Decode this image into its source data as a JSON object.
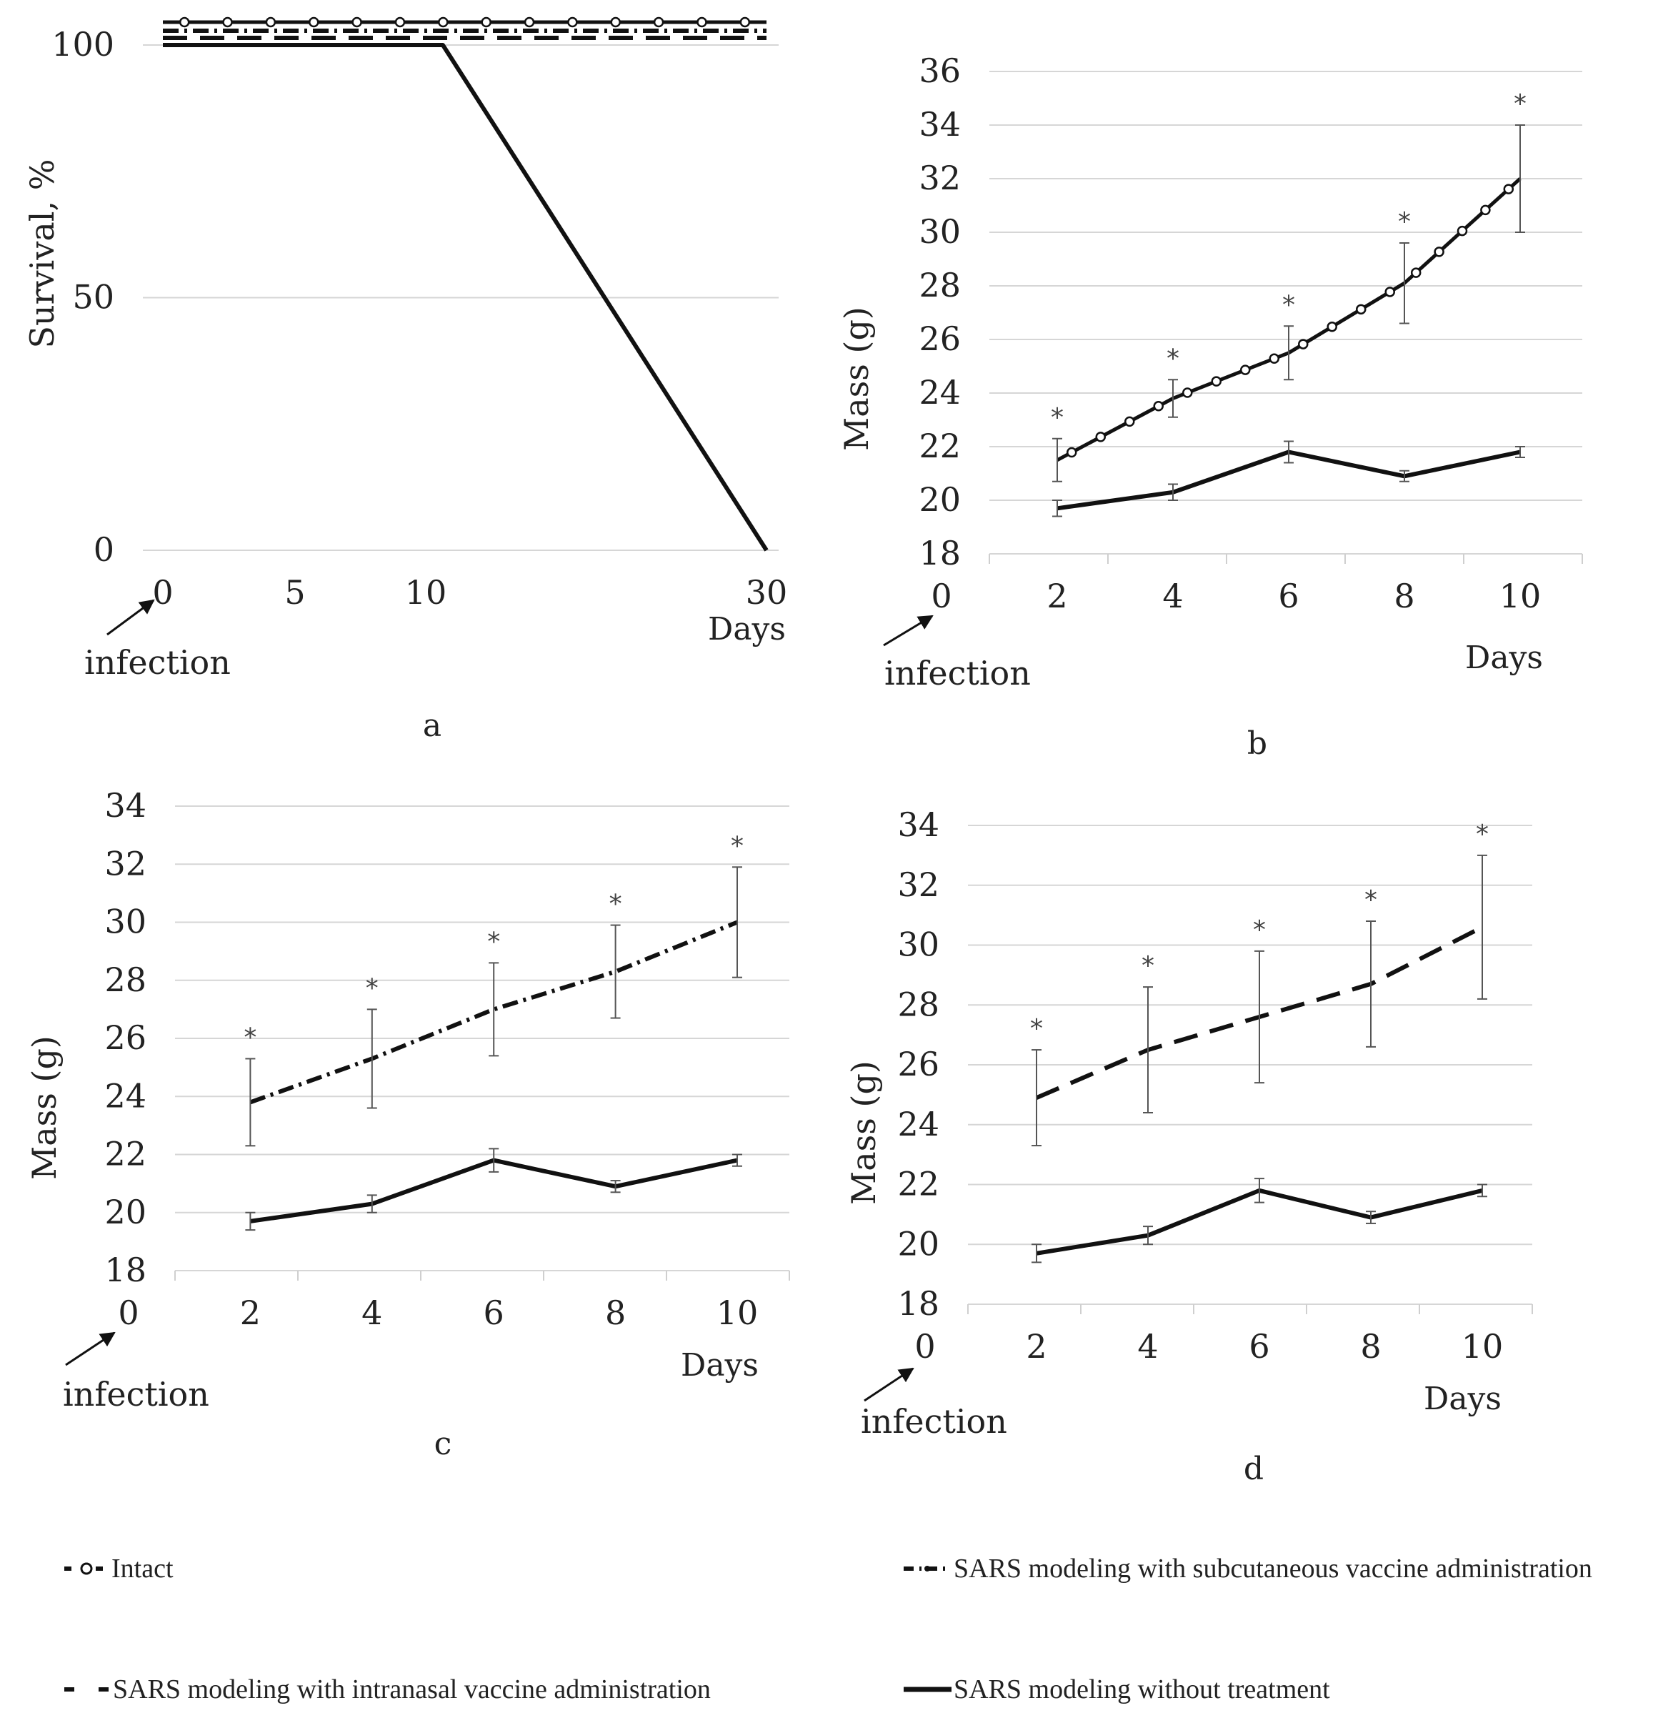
{
  "legend": [
    {
      "id": "intact",
      "label": "Intact"
    },
    {
      "id": "subcutaneous",
      "label": "SARS modeling with subcutaneous vaccine administration"
    },
    {
      "id": "intranasal",
      "label": "SARS modeling with intranasal vaccine administration"
    },
    {
      "id": "untreated",
      "label": "SARS modeling without treatment"
    }
  ],
  "chart_data": [
    {
      "panel": "a",
      "type": "line",
      "ylabel": "Survival, %",
      "xlabel": "Days",
      "annotation": "infection",
      "x_ticks": [
        "0",
        "5",
        "10",
        "30"
      ],
      "y_ticks": [
        "0",
        "50",
        "100"
      ],
      "ylim": [
        0,
        100
      ],
      "series": [
        {
          "name": "Intact",
          "style": "intact",
          "x": [
            0,
            30
          ],
          "y": [
            100,
            100
          ]
        },
        {
          "name": "SARS modeling with subcutaneous vaccine administration",
          "style": "subcutaneous",
          "x": [
            0,
            30
          ],
          "y": [
            100,
            100
          ]
        },
        {
          "name": "SARS modeling with intranasal vaccine administration",
          "style": "intranasal",
          "x": [
            0,
            30
          ],
          "y": [
            100,
            100
          ]
        },
        {
          "name": "SARS modeling without treatment",
          "style": "untreated",
          "x": [
            0,
            11,
            30
          ],
          "y": [
            100,
            100,
            0
          ]
        }
      ]
    },
    {
      "panel": "b",
      "type": "line",
      "ylabel": "Mass (g)",
      "xlabel": "Days",
      "annotation": "infection",
      "x_ticks": [
        "0",
        "2",
        "4",
        "6",
        "8",
        "10"
      ],
      "y_ticks": [
        "18",
        "20",
        "22",
        "24",
        "26",
        "28",
        "30",
        "32",
        "34",
        "36"
      ],
      "ylim": [
        18,
        36
      ],
      "series": [
        {
          "name": "Intact",
          "style": "intact",
          "x": [
            2,
            4,
            6,
            8,
            10
          ],
          "y": [
            21.5,
            23.8,
            25.5,
            28.1,
            32.0
          ],
          "err": [
            0.8,
            0.7,
            1.0,
            1.5,
            2.0
          ],
          "sig": true
        },
        {
          "name": "SARS modeling without treatment",
          "style": "untreated",
          "x": [
            2,
            4,
            6,
            8,
            10
          ],
          "y": [
            19.7,
            20.3,
            21.8,
            20.9,
            21.8
          ],
          "err": [
            0.3,
            0.3,
            0.4,
            0.2,
            0.2
          ],
          "sig": false
        }
      ]
    },
    {
      "panel": "c",
      "type": "line",
      "ylabel": "Mass (g)",
      "xlabel": "Days",
      "annotation": "infection",
      "x_ticks": [
        "0",
        "2",
        "4",
        "6",
        "8",
        "10"
      ],
      "y_ticks": [
        "18",
        "20",
        "22",
        "24",
        "26",
        "28",
        "30",
        "32",
        "34"
      ],
      "ylim": [
        18,
        34
      ],
      "series": [
        {
          "name": "SARS modeling with subcutaneous vaccine administration",
          "style": "subcutaneous",
          "x": [
            2,
            4,
            6,
            8,
            10
          ],
          "y": [
            23.8,
            25.3,
            27.0,
            28.3,
            30.0
          ],
          "err": [
            1.5,
            1.7,
            1.6,
            1.6,
            1.9
          ],
          "sig": true
        },
        {
          "name": "SARS modeling without treatment",
          "style": "untreated",
          "x": [
            2,
            4,
            6,
            8,
            10
          ],
          "y": [
            19.7,
            20.3,
            21.8,
            20.9,
            21.8
          ],
          "err": [
            0.3,
            0.3,
            0.4,
            0.2,
            0.2
          ],
          "sig": false
        }
      ]
    },
    {
      "panel": "d",
      "type": "line",
      "ylabel": "Mass (g)",
      "xlabel": "Days",
      "annotation": "infection",
      "x_ticks": [
        "0",
        "2",
        "4",
        "6",
        "8",
        "10"
      ],
      "y_ticks": [
        "18",
        "20",
        "22",
        "24",
        "26",
        "28",
        "30",
        "32",
        "34"
      ],
      "ylim": [
        18,
        34
      ],
      "series": [
        {
          "name": "SARS modeling with intranasal vaccine administration",
          "style": "intranasal",
          "x": [
            2,
            4,
            6,
            8,
            10
          ],
          "y": [
            24.9,
            26.5,
            27.6,
            28.7,
            30.6
          ],
          "err": [
            1.6,
            2.1,
            2.2,
            2.1,
            2.4
          ],
          "sig": true
        },
        {
          "name": "SARS modeling without treatment",
          "style": "untreated",
          "x": [
            2,
            4,
            6,
            8,
            10
          ],
          "y": [
            19.7,
            20.3,
            21.8,
            20.9,
            21.8
          ],
          "err": [
            0.3,
            0.3,
            0.4,
            0.2,
            0.2
          ],
          "sig": false
        }
      ]
    }
  ]
}
